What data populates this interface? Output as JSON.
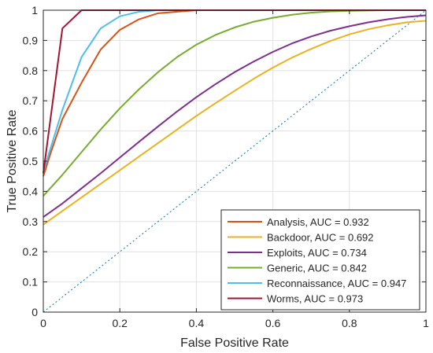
{
  "chart_data": {
    "type": "line",
    "title": "",
    "xlabel": "False Positive Rate",
    "ylabel": "True Positive Rate",
    "xlim": [
      0,
      1
    ],
    "ylim": [
      0,
      1
    ],
    "xticks": [
      "0",
      "0.2",
      "0.4",
      "0.6",
      "0.8",
      "1"
    ],
    "yticks": [
      "0",
      "0.1",
      "0.2",
      "0.3",
      "0.4",
      "0.5",
      "0.6",
      "0.7",
      "0.8",
      "0.9",
      "1"
    ],
    "grid": true,
    "legend_position": "bottom-right",
    "series": [
      {
        "name": "Analysis, AUC = 0.932",
        "color": "#d95319",
        "x": [
          0,
          0.02,
          0.05,
          0.1,
          0.15,
          0.2,
          0.25,
          0.3,
          0.35,
          0.4,
          0.5,
          0.6,
          0.8,
          1
        ],
        "y": [
          0.45,
          0.53,
          0.64,
          0.76,
          0.87,
          0.935,
          0.97,
          0.99,
          0.995,
          1,
          1,
          1,
          1,
          1
        ]
      },
      {
        "name": "Backdoor, AUC = 0.692",
        "color": "#edb120",
        "x": [
          0,
          0.05,
          0.1,
          0.15,
          0.2,
          0.25,
          0.3,
          0.35,
          0.4,
          0.45,
          0.5,
          0.55,
          0.6,
          0.65,
          0.7,
          0.75,
          0.8,
          0.85,
          0.9,
          0.95,
          1
        ],
        "y": [
          0.29,
          0.335,
          0.38,
          0.425,
          0.47,
          0.515,
          0.56,
          0.605,
          0.65,
          0.692,
          0.733,
          0.773,
          0.81,
          0.843,
          0.872,
          0.898,
          0.92,
          0.937,
          0.95,
          0.96,
          0.965
        ]
      },
      {
        "name": "Exploits, AUC = 0.734",
        "color": "#7e2f8e",
        "x": [
          0,
          0.05,
          0.1,
          0.15,
          0.2,
          0.25,
          0.3,
          0.35,
          0.4,
          0.45,
          0.5,
          0.55,
          0.6,
          0.65,
          0.7,
          0.75,
          0.8,
          0.85,
          0.9,
          0.95,
          1
        ],
        "y": [
          0.315,
          0.36,
          0.41,
          0.46,
          0.512,
          0.564,
          0.615,
          0.665,
          0.712,
          0.755,
          0.795,
          0.83,
          0.862,
          0.89,
          0.913,
          0.932,
          0.947,
          0.96,
          0.97,
          0.978,
          0.983
        ]
      },
      {
        "name": "Generic, AUC = 0.842",
        "color": "#77ac30",
        "x": [
          0,
          0.05,
          0.1,
          0.15,
          0.2,
          0.25,
          0.3,
          0.35,
          0.4,
          0.45,
          0.5,
          0.55,
          0.6,
          0.65,
          0.7,
          0.75,
          0.8,
          0.9,
          1
        ],
        "y": [
          0.385,
          0.455,
          0.53,
          0.605,
          0.675,
          0.738,
          0.795,
          0.845,
          0.886,
          0.918,
          0.943,
          0.962,
          0.975,
          0.985,
          0.992,
          0.996,
          0.998,
          1,
          1
        ]
      },
      {
        "name": "Reconnaissance, AUC = 0.947",
        "color": "#4dbeee",
        "x": [
          0,
          0.05,
          0.1,
          0.15,
          0.2,
          0.25,
          0.3,
          0.4,
          0.6,
          0.8,
          1
        ],
        "y": [
          0.465,
          0.67,
          0.845,
          0.94,
          0.98,
          0.995,
          1,
          1,
          1,
          1,
          1
        ]
      },
      {
        "name": "Worms, AUC = 0.973",
        "color": "#a2142f",
        "x": [
          0,
          0.05,
          0.1,
          0.2,
          0.4,
          0.6,
          0.8,
          1
        ],
        "y": [
          0.46,
          0.94,
          1,
          1,
          1,
          1,
          1,
          1
        ]
      }
    ],
    "reference_line": {
      "color": "#0072bd",
      "style": "dotted",
      "x": [
        0,
        1
      ],
      "y": [
        0,
        1
      ]
    }
  }
}
